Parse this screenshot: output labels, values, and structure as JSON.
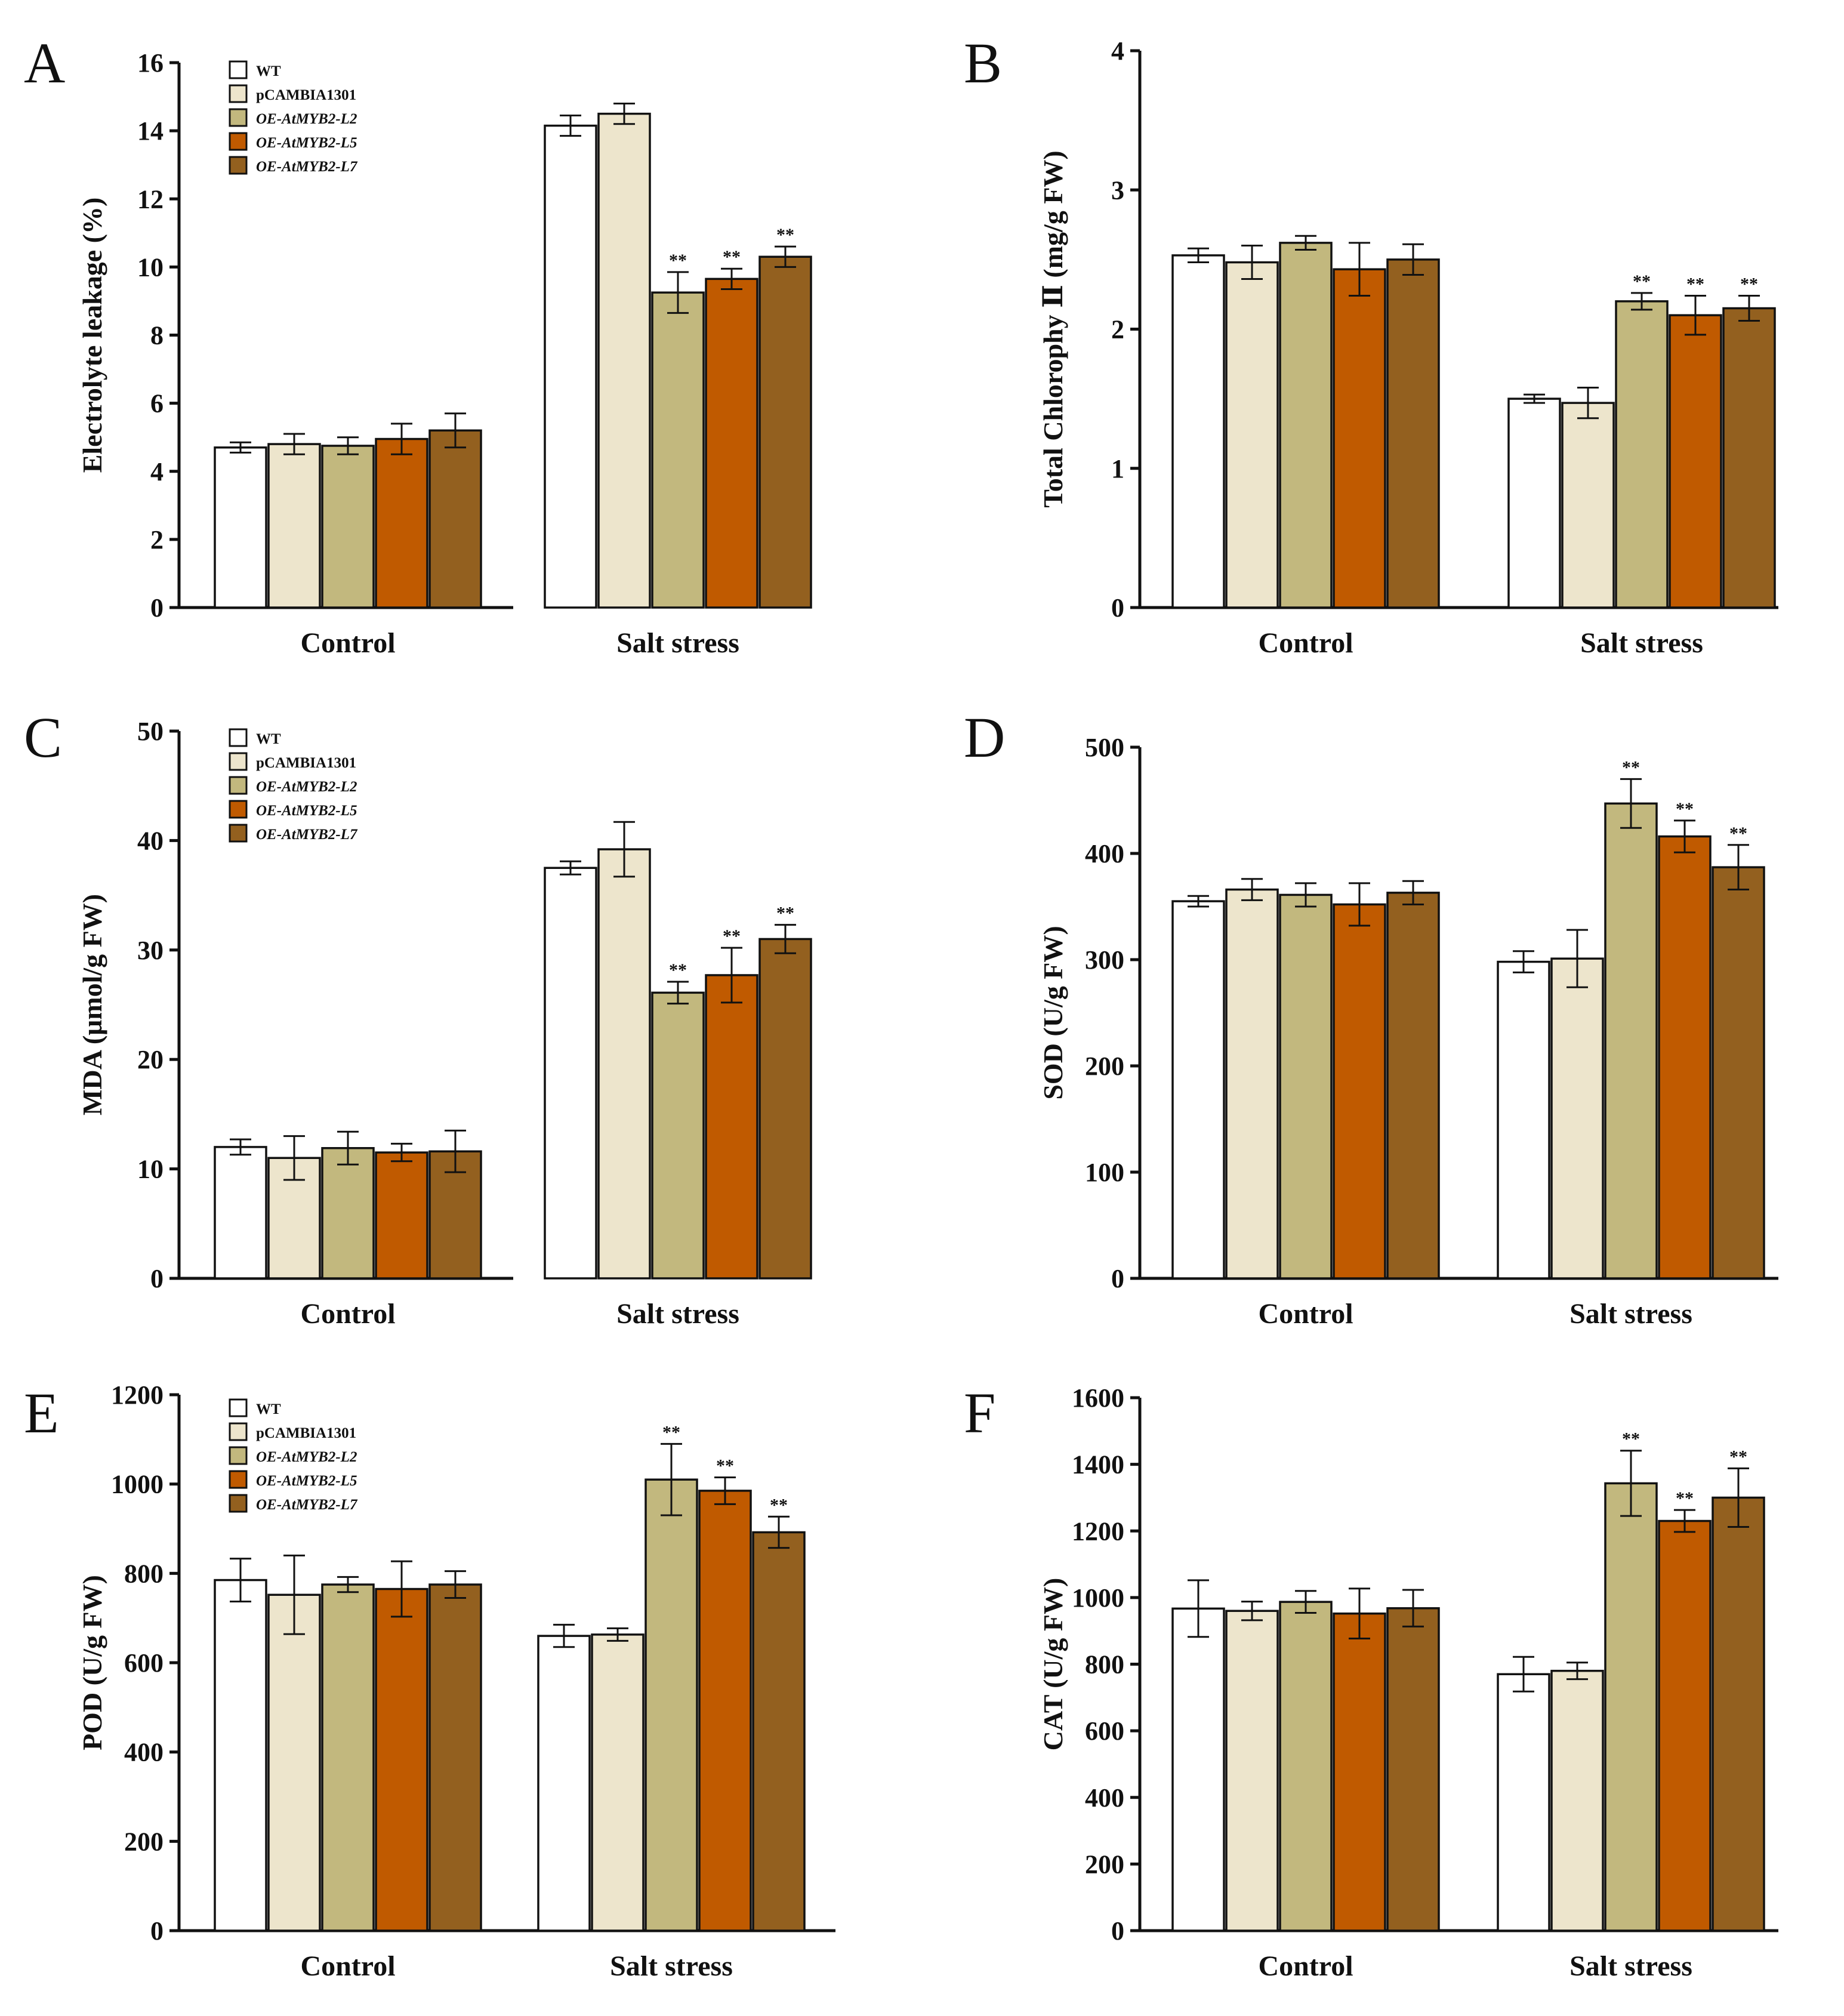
{
  "figure": {
    "legend": [
      {
        "name": "WT",
        "color": "#ffffff",
        "italic": false
      },
      {
        "name": "pCAMBIA1301",
        "color": "#ede5cc",
        "italic": false
      },
      {
        "name": "OE-AtMYB2-L2",
        "color": "#c2b87e",
        "italic": true
      },
      {
        "name": "OE-AtMYB2-L5",
        "color": "#c05a00",
        "italic": true
      },
      {
        "name": "OE-AtMYB2-L7",
        "color": "#93601f",
        "italic": true
      }
    ],
    "significance_label": "**"
  },
  "chart_data": [
    {
      "panel": "A",
      "type": "bar",
      "ylabel": "Electrolyte leakage (%)",
      "ylim": [
        0,
        16
      ],
      "yticks": [
        0,
        2,
        4,
        6,
        8,
        10,
        12,
        14,
        16
      ],
      "show_legend": true,
      "categories": [
        "Control",
        "Salt stress"
      ],
      "series": [
        {
          "name": "WT",
          "values": [
            4.7,
            14.15
          ],
          "errors": [
            0.15,
            0.3
          ],
          "significant": [
            false,
            false
          ]
        },
        {
          "name": "pCAMBIA1301",
          "values": [
            4.8,
            14.5
          ],
          "errors": [
            0.3,
            0.3
          ],
          "significant": [
            false,
            false
          ]
        },
        {
          "name": "OE-AtMYB2-L2",
          "values": [
            4.75,
            9.25
          ],
          "errors": [
            0.25,
            0.6
          ],
          "significant": [
            false,
            true
          ]
        },
        {
          "name": "OE-AtMYB2-L5",
          "values": [
            4.95,
            9.65
          ],
          "errors": [
            0.45,
            0.3
          ],
          "significant": [
            false,
            true
          ]
        },
        {
          "name": "OE-AtMYB2-L7",
          "values": [
            5.2,
            10.3
          ],
          "errors": [
            0.5,
            0.3
          ],
          "significant": [
            false,
            true
          ]
        }
      ]
    },
    {
      "panel": "B",
      "type": "bar",
      "ylabel": "Total Chlorophy Ⅱ (mg/g FW)",
      "ylim": [
        0,
        4
      ],
      "yticks": [
        0,
        1,
        2,
        3,
        4
      ],
      "show_legend": false,
      "categories": [
        "Control",
        "Salt stress"
      ],
      "series": [
        {
          "name": "WT",
          "values": [
            2.53,
            1.5
          ],
          "errors": [
            0.05,
            0.03
          ],
          "significant": [
            false,
            false
          ]
        },
        {
          "name": "pCAMBIA1301",
          "values": [
            2.48,
            1.47
          ],
          "errors": [
            0.12,
            0.11
          ],
          "significant": [
            false,
            false
          ]
        },
        {
          "name": "OE-AtMYB2-L2",
          "values": [
            2.62,
            2.2
          ],
          "errors": [
            0.05,
            0.06
          ],
          "significant": [
            false,
            true
          ]
        },
        {
          "name": "OE-AtMYB2-L5",
          "values": [
            2.43,
            2.1
          ],
          "errors": [
            0.19,
            0.14
          ],
          "significant": [
            false,
            true
          ]
        },
        {
          "name": "OE-AtMYB2-L7",
          "values": [
            2.5,
            2.15
          ],
          "errors": [
            0.11,
            0.09
          ],
          "significant": [
            false,
            true
          ]
        }
      ]
    },
    {
      "panel": "C",
      "type": "bar",
      "ylabel": "MDA (μmol/g FW)",
      "ylim": [
        0,
        50
      ],
      "yticks": [
        0,
        10,
        20,
        30,
        40,
        50
      ],
      "show_legend": true,
      "categories": [
        "Control",
        "Salt stress"
      ],
      "series": [
        {
          "name": "WT",
          "values": [
            12.0,
            37.5
          ],
          "errors": [
            0.7,
            0.6
          ],
          "significant": [
            false,
            false
          ]
        },
        {
          "name": "pCAMBIA1301",
          "values": [
            11.0,
            39.2
          ],
          "errors": [
            2.0,
            2.5
          ],
          "significant": [
            false,
            false
          ]
        },
        {
          "name": "OE-AtMYB2-L2",
          "values": [
            11.9,
            26.1
          ],
          "errors": [
            1.5,
            1.0
          ],
          "significant": [
            false,
            true
          ]
        },
        {
          "name": "OE-AtMYB2-L5",
          "values": [
            11.5,
            27.7
          ],
          "errors": [
            0.8,
            2.5
          ],
          "significant": [
            false,
            true
          ]
        },
        {
          "name": "OE-AtMYB2-L7",
          "values": [
            11.6,
            31.0
          ],
          "errors": [
            1.9,
            1.3
          ],
          "significant": [
            false,
            true
          ]
        }
      ]
    },
    {
      "panel": "D",
      "type": "bar",
      "ylabel": "SOD (U/g FW)",
      "ylim": [
        0,
        500
      ],
      "yticks": [
        0,
        100,
        200,
        300,
        400,
        500
      ],
      "show_legend": false,
      "categories": [
        "Control",
        "Salt stress"
      ],
      "series": [
        {
          "name": "WT",
          "values": [
            355,
            298
          ],
          "errors": [
            5,
            10
          ],
          "significant": [
            false,
            false
          ]
        },
        {
          "name": "pCAMBIA1301",
          "values": [
            366,
            301
          ],
          "errors": [
            10,
            27
          ],
          "significant": [
            false,
            false
          ]
        },
        {
          "name": "OE-AtMYB2-L2",
          "values": [
            361,
            447
          ],
          "errors": [
            11,
            23
          ],
          "significant": [
            false,
            true
          ]
        },
        {
          "name": "OE-AtMYB2-L5",
          "values": [
            352,
            416
          ],
          "errors": [
            20,
            15
          ],
          "significant": [
            false,
            true
          ]
        },
        {
          "name": "OE-AtMYB2-L7",
          "values": [
            363,
            387
          ],
          "errors": [
            11,
            21
          ],
          "significant": [
            false,
            true
          ]
        }
      ]
    },
    {
      "panel": "E",
      "type": "bar",
      "ylabel": "POD (U/g FW)",
      "ylim": [
        0,
        1200
      ],
      "yticks": [
        0,
        200,
        400,
        600,
        800,
        1000,
        1200
      ],
      "show_legend": true,
      "categories": [
        "Control",
        "Salt stress"
      ],
      "series": [
        {
          "name": "WT",
          "values": [
            785,
            660
          ],
          "errors": [
            48,
            25
          ],
          "significant": [
            false,
            false
          ]
        },
        {
          "name": "pCAMBIA1301",
          "values": [
            752,
            663
          ],
          "errors": [
            88,
            14
          ],
          "significant": [
            false,
            false
          ]
        },
        {
          "name": "OE-AtMYB2-L2",
          "values": [
            775,
            1010
          ],
          "errors": [
            17,
            80
          ],
          "significant": [
            false,
            true
          ]
        },
        {
          "name": "OE-AtMYB2-L5",
          "values": [
            765,
            985
          ],
          "errors": [
            62,
            30
          ],
          "significant": [
            false,
            true
          ]
        },
        {
          "name": "OE-AtMYB2-L7",
          "values": [
            775,
            892
          ],
          "errors": [
            30,
            35
          ],
          "significant": [
            false,
            true
          ]
        }
      ]
    },
    {
      "panel": "F",
      "type": "bar",
      "ylabel": "CAT (U/g FW)",
      "ylim": [
        0,
        1600
      ],
      "yticks": [
        0,
        200,
        400,
        600,
        800,
        1000,
        1200,
        1400,
        1600
      ],
      "show_legend": false,
      "categories": [
        "Control",
        "Salt stress"
      ],
      "series": [
        {
          "name": "WT",
          "values": [
            967,
            770
          ],
          "errors": [
            85,
            52
          ],
          "significant": [
            false,
            false
          ]
        },
        {
          "name": "pCAMBIA1301",
          "values": [
            960,
            780
          ],
          "errors": [
            28,
            25
          ],
          "significant": [
            false,
            false
          ]
        },
        {
          "name": "OE-AtMYB2-L2",
          "values": [
            987,
            1343
          ],
          "errors": [
            33,
            98
          ],
          "significant": [
            false,
            true
          ]
        },
        {
          "name": "OE-AtMYB2-L5",
          "values": [
            952,
            1230
          ],
          "errors": [
            75,
            33
          ],
          "significant": [
            false,
            true
          ]
        },
        {
          "name": "OE-AtMYB2-L7",
          "values": [
            968,
            1300
          ],
          "errors": [
            55,
            88
          ],
          "significant": [
            false,
            true
          ]
        }
      ]
    }
  ]
}
